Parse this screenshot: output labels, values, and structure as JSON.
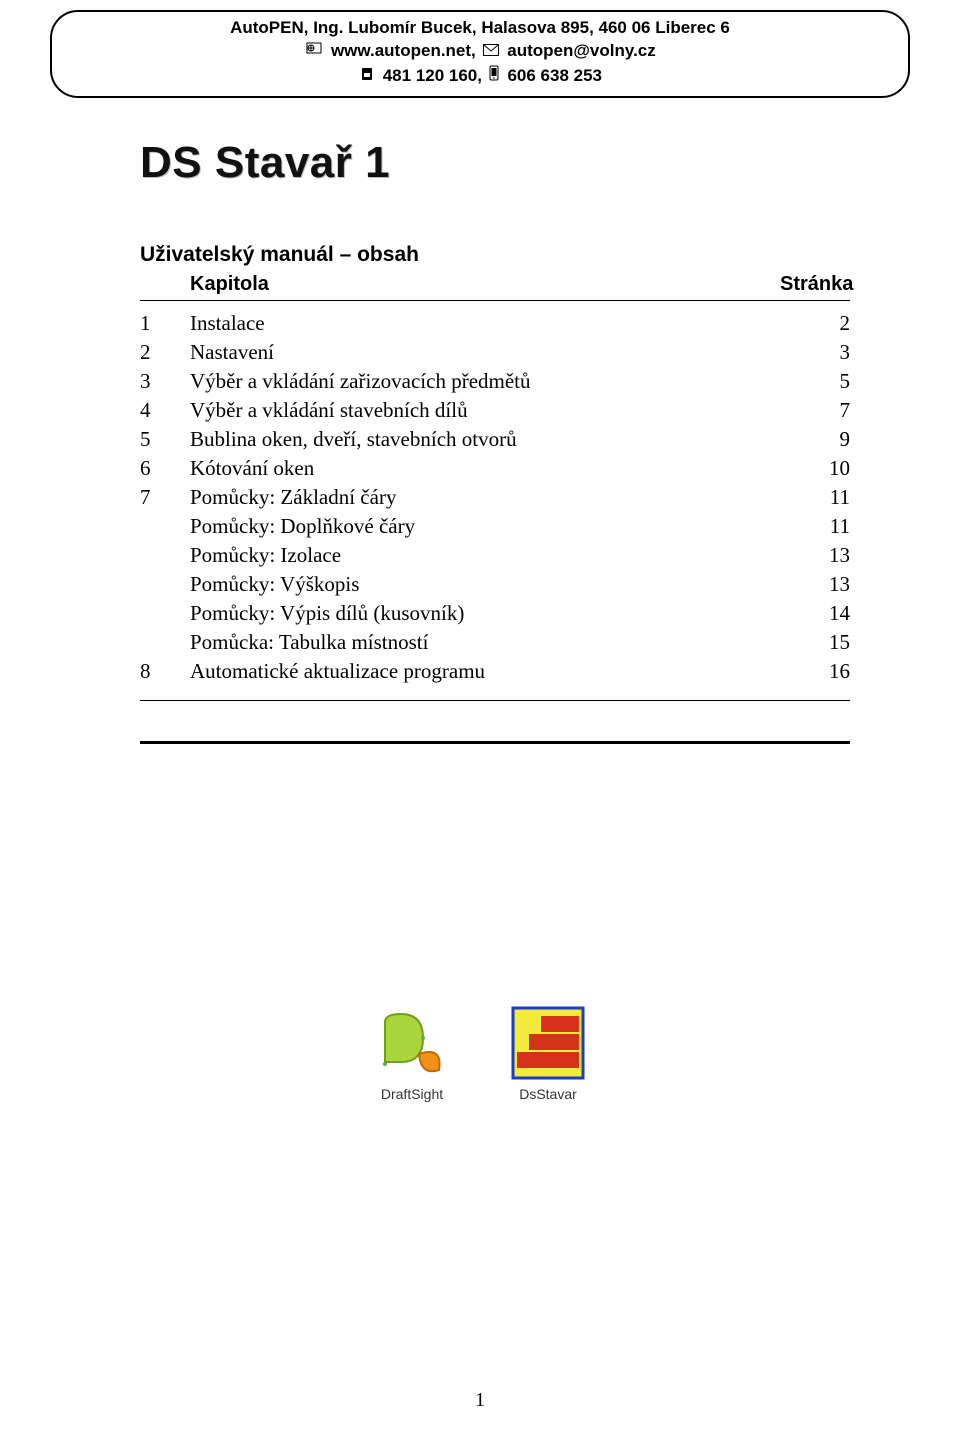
{
  "header": {
    "line1": "AutoPEN, Ing. Lubomír Bucek, Halasova 895, 460 06 Liberec 6",
    "website": "www.autopen.net,",
    "email": "autopen@volny.cz",
    "phone1": "481 120 160,",
    "phone2": "606 638 253"
  },
  "title": "DS Stavař 1",
  "subtitle": "Uživatelský manuál – obsah",
  "toc_header": {
    "chapter": "Kapitola",
    "page": "Stránka"
  },
  "toc": [
    {
      "num": "1",
      "title": "Instalace",
      "page": "2"
    },
    {
      "num": "2",
      "title": "Nastavení",
      "page": "3"
    },
    {
      "num": "3",
      "title": "Výběr a vkládání zařizovacích předmětů",
      "page": "5"
    },
    {
      "num": "4",
      "title": "Výběr a vkládání stavebních dílů",
      "page": "7"
    },
    {
      "num": "5",
      "title": "Bublina oken, dveří, stavebních otvorů",
      "page": "9"
    },
    {
      "num": "6",
      "title": "Kótování oken",
      "page": "10"
    },
    {
      "num": "7",
      "title": "Pomůcky: Základní čáry",
      "page": "11"
    },
    {
      "num": "",
      "title": "Pomůcky: Doplňkové čáry",
      "page": "11"
    },
    {
      "num": "",
      "title": "Pomůcky: Izolace",
      "page": "13"
    },
    {
      "num": "",
      "title": "Pomůcky: Výškopis",
      "page": "13"
    },
    {
      "num": "",
      "title": "Pomůcky: Výpis dílů (kusovník)",
      "page": "14"
    },
    {
      "num": "",
      "title": "Pomůcka: Tabulka místností",
      "page": "15"
    },
    {
      "num": "8",
      "title": "Automatické aktualizace programu",
      "page": "16"
    }
  ],
  "icons": {
    "draftsight": "DraftSight",
    "dsstavar": "DsStavar"
  },
  "page_number": "1",
  "colors": {
    "icon_ds_green": "#a9d53d",
    "icon_ds_orange": "#f29117",
    "brick_red": "#d6321b",
    "brick_bg": "#f4ea3b",
    "brick_border": "#1a3cc7"
  }
}
